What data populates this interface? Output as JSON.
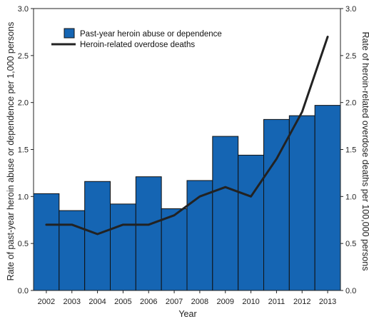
{
  "chart_data": {
    "type": "bar",
    "categories": [
      "2002",
      "2003",
      "2004",
      "2005",
      "2006",
      "2007",
      "2008",
      "2009",
      "2010",
      "2011",
      "2012",
      "2013"
    ],
    "series": [
      {
        "name": "Past-year heroin abuse or dependence",
        "kind": "bar",
        "axis": "left",
        "values": [
          1.03,
          0.85,
          1.16,
          0.92,
          1.21,
          0.87,
          1.17,
          1.64,
          1.44,
          1.82,
          1.86,
          1.97
        ]
      },
      {
        "name": "Heroin-related overdose deaths",
        "kind": "line",
        "axis": "right",
        "values": [
          0.7,
          0.7,
          0.6,
          0.7,
          0.7,
          0.8,
          1.0,
          1.1,
          1.0,
          1.4,
          1.9,
          2.7
        ]
      }
    ],
    "xlabel": "Year",
    "ylabel": "Rate of past-year heroin abuse or dependence per 1,000 persons",
    "y2label": "Rate of heroin-related overdose deaths per 100,000 persons",
    "ylim": [
      0,
      3.0
    ],
    "y2lim": [
      0,
      3.0
    ],
    "yticks": [
      "0.0",
      "0.5",
      "1.0",
      "1.5",
      "2.0",
      "2.5",
      "3.0"
    ],
    "y2ticks": [
      "0.0",
      "0.5",
      "1.0",
      "1.5",
      "2.0",
      "2.5",
      "3.0"
    ],
    "grid": false,
    "legend_position": "top-left",
    "colors": {
      "bar_fill": "#1565b3",
      "bar_stroke": "#111111",
      "line": "#222222",
      "axis": "#222222"
    }
  }
}
